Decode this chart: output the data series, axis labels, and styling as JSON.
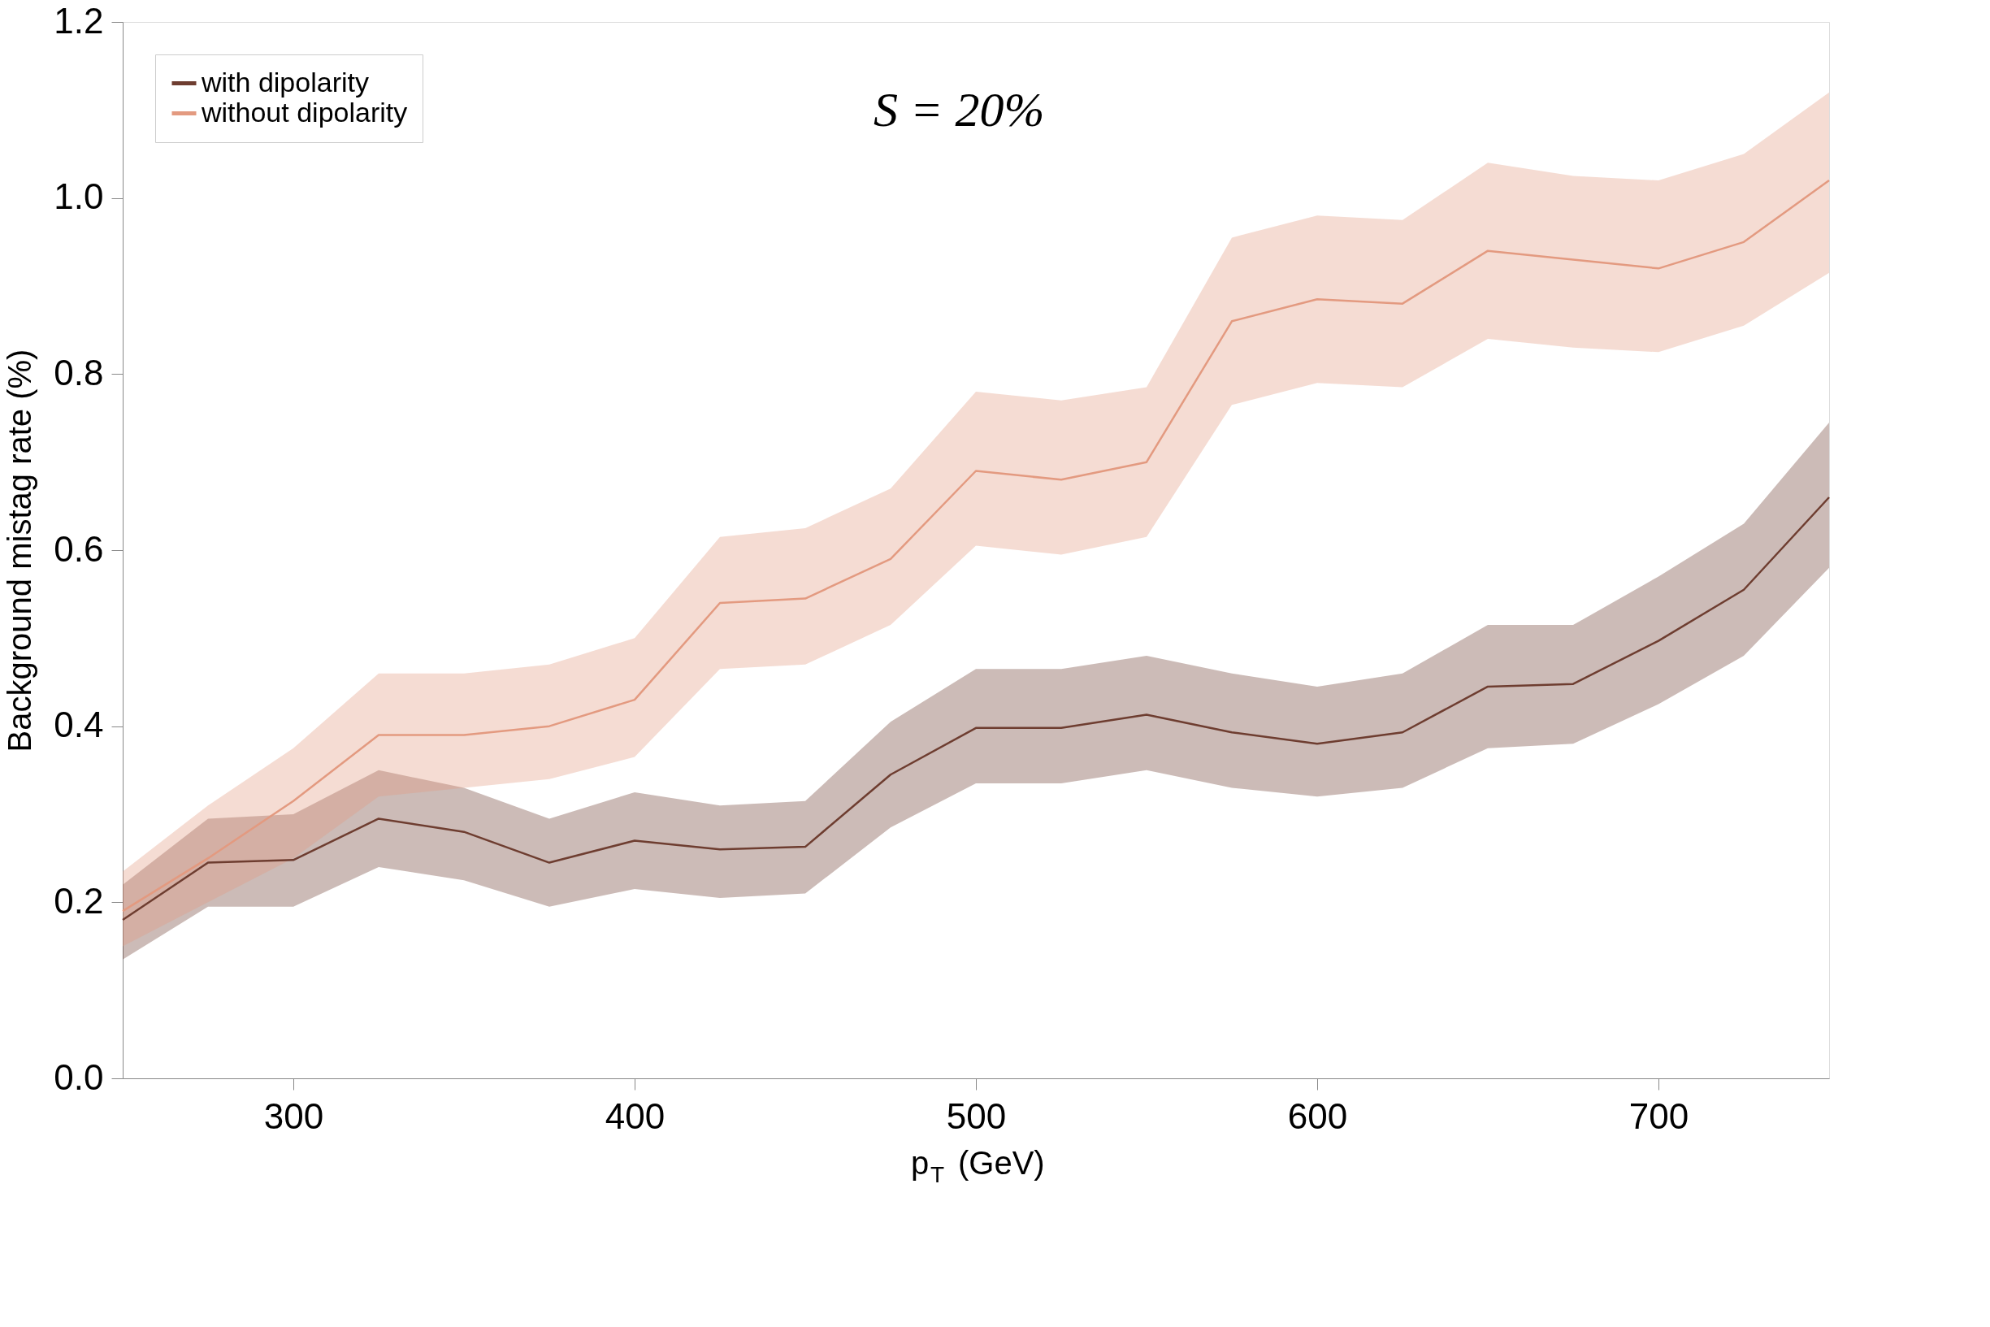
{
  "chart_data": {
    "type": "line",
    "xlabel": "p$_{T}$ (GeV)",
    "ylabel": "Background mistag rate (%)",
    "annotations": [
      "S = 20%"
    ],
    "xlim": [
      250,
      750
    ],
    "xticks": [
      300,
      400,
      500,
      600,
      700
    ],
    "ylim": [
      0,
      1.2
    ],
    "yticks": [
      {
        "value": 0,
        "label": "0.0"
      },
      {
        "value": 0.2,
        "label": "0.2"
      },
      {
        "value": 0.4,
        "label": "0.4"
      },
      {
        "value": 0.6,
        "label": "0.6"
      },
      {
        "value": 0.8,
        "label": "0.8"
      },
      {
        "value": 1,
        "label": "1.0"
      },
      {
        "value": 1.2,
        "label": "1.2"
      }
    ],
    "x": [
      250,
      275,
      300,
      325,
      350,
      375,
      400,
      425,
      450,
      475,
      500,
      525,
      550,
      575,
      600,
      625,
      650,
      675,
      700,
      725,
      750
    ],
    "grid": false,
    "legend": "top left",
    "marker": "none",
    "line_style": "solid",
    "series": [
      {
        "name": "with dipolarity",
        "color": "#6e3d30",
        "values": [
          0.18,
          0.245,
          0.248,
          0.295,
          0.28,
          0.245,
          0.27,
          0.26,
          0.263,
          0.345,
          0.398,
          0.398,
          0.413,
          0.393,
          0.38,
          0.393,
          0.445,
          0.448,
          0.497,
          0.555,
          0.66
        ],
        "upper": [
          0.22,
          0.295,
          0.3,
          0.35,
          0.33,
          0.295,
          0.325,
          0.31,
          0.315,
          0.405,
          0.465,
          0.465,
          0.48,
          0.46,
          0.445,
          0.46,
          0.515,
          0.515,
          0.57,
          0.63,
          0.745
        ],
        "lower": [
          0.135,
          0.195,
          0.195,
          0.24,
          0.225,
          0.195,
          0.215,
          0.205,
          0.21,
          0.285,
          0.335,
          0.335,
          0.35,
          0.33,
          0.32,
          0.33,
          0.375,
          0.38,
          0.425,
          0.48,
          0.58
        ]
      },
      {
        "name": "without dipolarity",
        "color": "#e39a80",
        "values": [
          0.19,
          0.25,
          0.315,
          0.39,
          0.39,
          0.4,
          0.43,
          0.54,
          0.545,
          0.59,
          0.69,
          0.68,
          0.7,
          0.86,
          0.885,
          0.88,
          0.94,
          0.93,
          0.92,
          0.95,
          1.02
        ],
        "upper": [
          0.235,
          0.31,
          0.375,
          0.46,
          0.46,
          0.47,
          0.5,
          0.615,
          0.625,
          0.67,
          0.78,
          0.77,
          0.785,
          0.955,
          0.98,
          0.975,
          1.04,
          1.025,
          1.02,
          1.05,
          1.12
        ],
        "lower": [
          0.15,
          0.2,
          0.25,
          0.32,
          0.33,
          0.34,
          0.365,
          0.465,
          0.47,
          0.515,
          0.605,
          0.595,
          0.615,
          0.765,
          0.79,
          0.785,
          0.84,
          0.83,
          0.825,
          0.855,
          0.915
        ]
      }
    ]
  }
}
